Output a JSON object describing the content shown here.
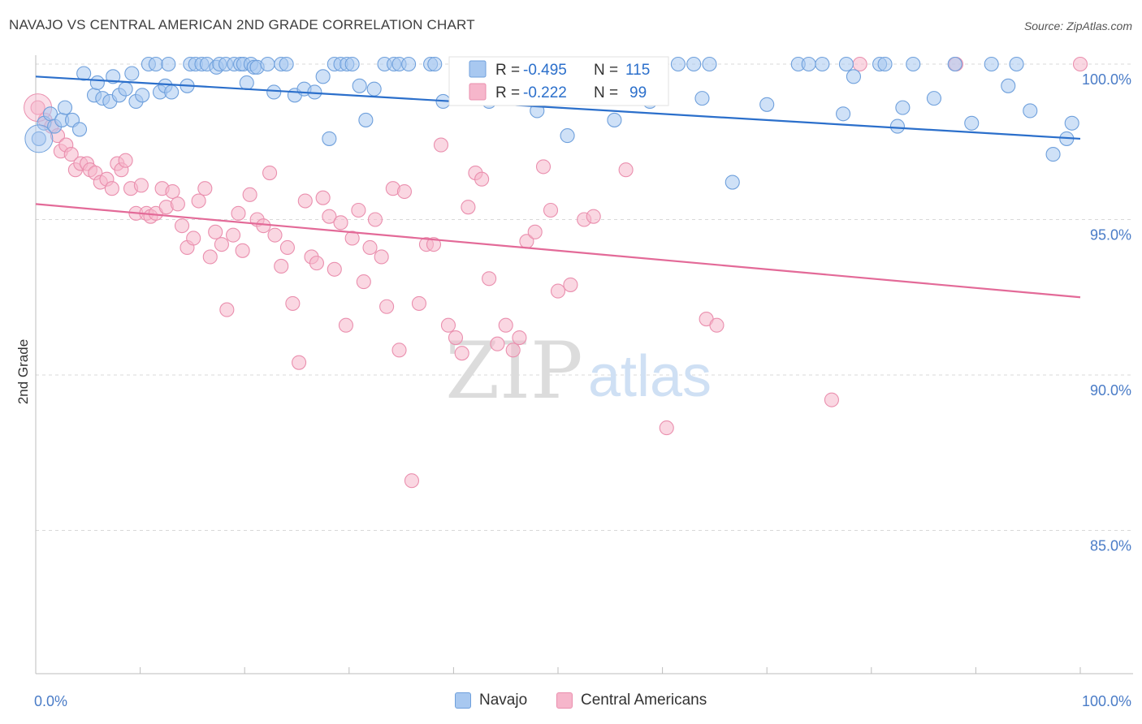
{
  "title": "NAVAJO VS CENTRAL AMERICAN 2ND GRADE CORRELATION CHART",
  "source": "Source: ZipAtlas.com",
  "watermark": {
    "zip": "ZIP",
    "atlas": "atlas"
  },
  "colors": {
    "navajo_fill": "#a8c8f0",
    "navajo_stroke": "#6fa0dc",
    "navajo_line": "#2b6fcb",
    "central_fill": "#f6b6cb",
    "central_stroke": "#ea8fae",
    "central_line": "#e36a98",
    "tick_label": "#4a7cc7",
    "grid": "#d9d9d9"
  },
  "legend_top": {
    "rows": [
      {
        "r_label": "R =",
        "r_value": "-0.495",
        "n_label": "N =",
        "n_value": "115",
        "series": "navajo"
      },
      {
        "r_label": "R =",
        "r_value": "-0.222",
        "n_label": "N =",
        "n_value": "99",
        "series": "central"
      }
    ]
  },
  "legend_bottom": {
    "items": [
      {
        "label": "Navajo",
        "series": "navajo"
      },
      {
        "label": "Central Americans",
        "series": "central"
      }
    ]
  },
  "chart_data": {
    "type": "scatter",
    "title": "NAVAJO VS CENTRAL AMERICAN 2ND GRADE CORRELATION CHART",
    "xlabel": "",
    "ylabel": "2nd Grade",
    "xlim": [
      0,
      100
    ],
    "ylim": [
      80.5,
      100.3
    ],
    "x_tick_labels": [
      "0.0%",
      "100.0%"
    ],
    "y_ticks": [
      100,
      95,
      90,
      85
    ],
    "y_tick_labels": [
      "100.0%",
      "95.0%",
      "90.0%",
      "85.0%"
    ],
    "grid": true,
    "legend_position": "top-center",
    "series": [
      {
        "name": "Navajo",
        "color": "#a8c8f0",
        "trend": {
          "x": [
            0,
            100
          ],
          "y": [
            99.6,
            97.6
          ]
        },
        "points": [
          [
            0.3,
            97.6
          ],
          [
            0.8,
            98.1
          ],
          [
            1.4,
            98.4
          ],
          [
            1.8,
            98.0
          ],
          [
            2.5,
            98.2
          ],
          [
            2.8,
            98.6
          ],
          [
            3.5,
            98.2
          ],
          [
            4.2,
            97.9
          ],
          [
            4.6,
            99.7
          ],
          [
            5.6,
            99.0
          ],
          [
            5.9,
            99.4
          ],
          [
            6.4,
            98.9
          ],
          [
            7.1,
            98.8
          ],
          [
            7.4,
            99.6
          ],
          [
            8.0,
            99.0
          ],
          [
            8.6,
            99.2
          ],
          [
            9.2,
            99.7
          ],
          [
            9.6,
            98.8
          ],
          [
            10.2,
            99.0
          ],
          [
            10.8,
            100.0
          ],
          [
            11.5,
            100.0
          ],
          [
            11.9,
            99.1
          ],
          [
            12.4,
            99.3
          ],
          [
            12.7,
            100.0
          ],
          [
            13.0,
            99.1
          ],
          [
            14.5,
            99.3
          ],
          [
            14.8,
            100.0
          ],
          [
            15.3,
            100.0
          ],
          [
            15.9,
            100.0
          ],
          [
            16.4,
            100.0
          ],
          [
            17.3,
            99.9
          ],
          [
            17.6,
            100.0
          ],
          [
            18.2,
            100.0
          ],
          [
            19.0,
            100.0
          ],
          [
            19.6,
            100.0
          ],
          [
            19.9,
            100.0
          ],
          [
            20.2,
            99.4
          ],
          [
            20.6,
            100.0
          ],
          [
            20.9,
            99.9
          ],
          [
            21.2,
            99.9
          ],
          [
            22.2,
            100.0
          ],
          [
            22.8,
            99.1
          ],
          [
            23.5,
            100.0
          ],
          [
            24.0,
            100.0
          ],
          [
            24.8,
            99.0
          ],
          [
            25.7,
            99.2
          ],
          [
            26.7,
            99.1
          ],
          [
            27.5,
            99.6
          ],
          [
            28.1,
            97.6
          ],
          [
            28.6,
            100.0
          ],
          [
            29.2,
            100.0
          ],
          [
            29.8,
            100.0
          ],
          [
            30.3,
            100.0
          ],
          [
            31.0,
            99.3
          ],
          [
            31.6,
            98.2
          ],
          [
            32.4,
            99.2
          ],
          [
            33.4,
            100.0
          ],
          [
            34.3,
            100.0
          ],
          [
            34.8,
            100.0
          ],
          [
            35.7,
            100.0
          ],
          [
            37.8,
            100.0
          ],
          [
            38.2,
            100.0
          ],
          [
            39.0,
            98.8
          ],
          [
            40.4,
            100.0
          ],
          [
            41.1,
            100.0
          ],
          [
            42.1,
            100.0
          ],
          [
            42.6,
            99.7
          ],
          [
            43.4,
            98.8
          ],
          [
            44.5,
            100.0
          ],
          [
            45.2,
            99.7
          ],
          [
            46.0,
            100.0
          ],
          [
            47.1,
            100.0
          ],
          [
            48.0,
            98.5
          ],
          [
            48.6,
            100.0
          ],
          [
            49.5,
            100.0
          ],
          [
            50.9,
            97.7
          ],
          [
            52.0,
            100.0
          ],
          [
            53.2,
            100.0
          ],
          [
            54.6,
            100.0
          ],
          [
            55.4,
            98.2
          ],
          [
            57.4,
            100.0
          ],
          [
            58.0,
            100.0
          ],
          [
            58.8,
            98.8
          ],
          [
            61.5,
            100.0
          ],
          [
            63.0,
            100.0
          ],
          [
            63.8,
            98.9
          ],
          [
            64.5,
            100.0
          ],
          [
            66.7,
            96.2
          ],
          [
            70.0,
            98.7
          ],
          [
            73.0,
            100.0
          ],
          [
            74.0,
            100.0
          ],
          [
            75.3,
            100.0
          ],
          [
            77.3,
            98.4
          ],
          [
            77.6,
            100.0
          ],
          [
            78.3,
            99.6
          ],
          [
            80.8,
            100.0
          ],
          [
            81.3,
            100.0
          ],
          [
            82.5,
            98.0
          ],
          [
            83.0,
            98.6
          ],
          [
            84.0,
            100.0
          ],
          [
            86.0,
            98.9
          ],
          [
            88.0,
            100.0
          ],
          [
            89.6,
            98.1
          ],
          [
            91.5,
            100.0
          ],
          [
            93.1,
            99.3
          ],
          [
            93.9,
            100.0
          ],
          [
            95.2,
            98.5
          ],
          [
            97.4,
            97.1
          ],
          [
            98.7,
            97.6
          ],
          [
            99.2,
            98.1
          ]
        ]
      },
      {
        "name": "Central Americans",
        "color": "#f6b6cb",
        "trend": {
          "x": [
            0,
            100
          ],
          "y": [
            95.5,
            92.5
          ]
        },
        "points": [
          [
            0.2,
            98.6
          ],
          [
            0.9,
            98.2
          ],
          [
            1.5,
            98.0
          ],
          [
            2.1,
            97.7
          ],
          [
            2.4,
            97.2
          ],
          [
            2.9,
            97.4
          ],
          [
            3.4,
            97.1
          ],
          [
            3.8,
            96.6
          ],
          [
            4.3,
            96.8
          ],
          [
            4.9,
            96.8
          ],
          [
            5.2,
            96.6
          ],
          [
            5.7,
            96.5
          ],
          [
            6.2,
            96.2
          ],
          [
            6.8,
            96.3
          ],
          [
            7.3,
            96.0
          ],
          [
            7.8,
            96.8
          ],
          [
            8.2,
            96.6
          ],
          [
            8.6,
            96.9
          ],
          [
            9.1,
            96.0
          ],
          [
            9.6,
            95.2
          ],
          [
            10.1,
            96.1
          ],
          [
            10.6,
            95.2
          ],
          [
            11.0,
            95.1
          ],
          [
            11.5,
            95.2
          ],
          [
            12.1,
            96.0
          ],
          [
            12.5,
            95.4
          ],
          [
            13.1,
            95.9
          ],
          [
            13.6,
            95.5
          ],
          [
            14.0,
            94.8
          ],
          [
            14.5,
            94.1
          ],
          [
            15.1,
            94.4
          ],
          [
            15.6,
            95.6
          ],
          [
            16.2,
            96.0
          ],
          [
            16.7,
            93.8
          ],
          [
            17.2,
            94.6
          ],
          [
            17.8,
            94.2
          ],
          [
            18.3,
            92.1
          ],
          [
            18.9,
            94.5
          ],
          [
            19.4,
            95.2
          ],
          [
            19.8,
            94.0
          ],
          [
            20.5,
            95.8
          ],
          [
            21.2,
            95.0
          ],
          [
            21.8,
            94.8
          ],
          [
            22.4,
            96.5
          ],
          [
            22.9,
            94.5
          ],
          [
            23.5,
            93.5
          ],
          [
            24.1,
            94.1
          ],
          [
            24.6,
            92.3
          ],
          [
            25.2,
            90.4
          ],
          [
            25.8,
            95.6
          ],
          [
            26.4,
            93.8
          ],
          [
            26.9,
            93.6
          ],
          [
            27.5,
            95.7
          ],
          [
            28.1,
            95.1
          ],
          [
            28.6,
            93.4
          ],
          [
            29.2,
            94.9
          ],
          [
            29.7,
            91.6
          ],
          [
            30.3,
            94.4
          ],
          [
            30.9,
            95.3
          ],
          [
            31.4,
            93.0
          ],
          [
            32.0,
            94.1
          ],
          [
            32.5,
            95.0
          ],
          [
            33.1,
            93.8
          ],
          [
            33.6,
            92.2
          ],
          [
            34.2,
            96.0
          ],
          [
            34.8,
            90.8
          ],
          [
            35.3,
            95.9
          ],
          [
            36.0,
            86.6
          ],
          [
            36.7,
            92.3
          ],
          [
            37.4,
            94.2
          ],
          [
            38.1,
            94.2
          ],
          [
            38.8,
            97.4
          ],
          [
            39.5,
            91.6
          ],
          [
            40.2,
            91.2
          ],
          [
            40.8,
            90.7
          ],
          [
            41.4,
            95.4
          ],
          [
            42.1,
            96.5
          ],
          [
            42.7,
            96.3
          ],
          [
            43.4,
            93.1
          ],
          [
            44.2,
            91.0
          ],
          [
            45.0,
            91.6
          ],
          [
            45.7,
            90.8
          ],
          [
            46.3,
            91.2
          ],
          [
            47.0,
            94.3
          ],
          [
            47.8,
            94.6
          ],
          [
            48.6,
            96.7
          ],
          [
            49.3,
            95.3
          ],
          [
            50.0,
            92.7
          ],
          [
            51.2,
            92.9
          ],
          [
            52.5,
            95.0
          ],
          [
            53.4,
            95.1
          ],
          [
            56.5,
            96.6
          ],
          [
            60.4,
            88.3
          ],
          [
            64.2,
            91.8
          ],
          [
            65.2,
            91.6
          ],
          [
            76.2,
            89.2
          ],
          [
            78.9,
            100.0
          ],
          [
            88.1,
            100.0
          ],
          [
            100.0,
            100.0
          ]
        ]
      }
    ]
  }
}
